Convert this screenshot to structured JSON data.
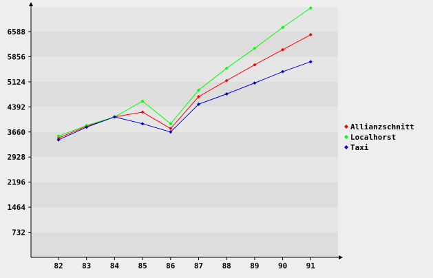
{
  "chart_data": {
    "type": "line",
    "title": "",
    "xlabel": "",
    "ylabel": "",
    "categories": [
      "82",
      "83",
      "84",
      "85",
      "86",
      "87",
      "88",
      "89",
      "90",
      "91"
    ],
    "yticks": [
      732,
      1464,
      2196,
      2928,
      3660,
      4392,
      5124,
      5856,
      6588
    ],
    "ylim": [
      0,
      7300
    ],
    "grid": "horizontal bands",
    "legend_position": "right",
    "series": [
      {
        "name": "Allianzschnitt",
        "color": "#ff0000",
        "values": [
          3480,
          3830,
          4100,
          4240,
          3760,
          4690,
          5160,
          5620,
          6060,
          6500
        ]
      },
      {
        "name": "Localhorst",
        "color": "#00ff00",
        "values": [
          3540,
          3850,
          4100,
          4560,
          3900,
          4880,
          5520,
          6100,
          6710,
          7280
        ]
      },
      {
        "name": "Taxi",
        "color": "#0000cc",
        "values": [
          3430,
          3800,
          4100,
          3900,
          3660,
          4470,
          4770,
          5090,
          5420,
          5710
        ]
      }
    ]
  }
}
